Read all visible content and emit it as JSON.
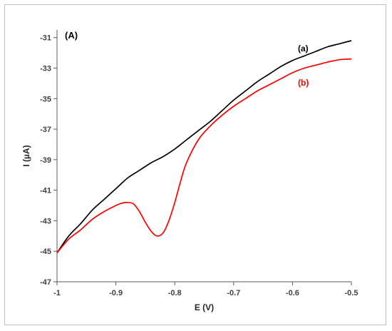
{
  "chart_data": {
    "type": "line",
    "panel_label": "(A)",
    "xlabel": "E (V)",
    "ylabel": "I (µA)",
    "xlim": [
      -1,
      -0.5
    ],
    "ylim": [
      -47,
      -30.5
    ],
    "x_ticks": [
      -1,
      -0.9,
      -0.8,
      -0.7,
      -0.6,
      -0.5
    ],
    "x_tick_labels": [
      "-1",
      "-0.9",
      "-0.8",
      "-0.7",
      "-0.6",
      "-0.5"
    ],
    "y_ticks": [
      -47,
      -45,
      -43,
      -41,
      -39,
      -37,
      -35,
      -33,
      -31
    ],
    "y_tick_labels": [
      "-47",
      "-45",
      "-43",
      "-41",
      "-39",
      "-37",
      "-35",
      "-33",
      "-31"
    ],
    "grid": false,
    "series": [
      {
        "name": "(a)",
        "color": "#000000",
        "x": [
          -1.0,
          -0.98,
          -0.96,
          -0.94,
          -0.92,
          -0.9,
          -0.88,
          -0.86,
          -0.84,
          -0.82,
          -0.8,
          -0.78,
          -0.76,
          -0.74,
          -0.72,
          -0.7,
          -0.68,
          -0.66,
          -0.64,
          -0.62,
          -0.6,
          -0.58,
          -0.56,
          -0.54,
          -0.52,
          -0.5
        ],
        "y": [
          -45.1,
          -44.0,
          -43.2,
          -42.3,
          -41.6,
          -40.9,
          -40.2,
          -39.7,
          -39.2,
          -38.8,
          -38.3,
          -37.7,
          -37.1,
          -36.5,
          -35.8,
          -35.1,
          -34.5,
          -33.9,
          -33.4,
          -32.9,
          -32.5,
          -32.2,
          -31.9,
          -31.6,
          -31.4,
          -31.2
        ]
      },
      {
        "name": "(b)",
        "color": "#ff0000",
        "x": [
          -1.0,
          -0.98,
          -0.96,
          -0.94,
          -0.92,
          -0.9,
          -0.89,
          -0.88,
          -0.87,
          -0.86,
          -0.85,
          -0.84,
          -0.83,
          -0.82,
          -0.81,
          -0.8,
          -0.79,
          -0.78,
          -0.76,
          -0.74,
          -0.72,
          -0.7,
          -0.68,
          -0.66,
          -0.64,
          -0.62,
          -0.6,
          -0.58,
          -0.56,
          -0.54,
          -0.52,
          -0.5
        ],
        "y": [
          -45.1,
          -44.2,
          -43.6,
          -42.9,
          -42.4,
          -42.0,
          -41.85,
          -41.8,
          -41.9,
          -42.4,
          -43.1,
          -43.7,
          -44.0,
          -43.8,
          -43.0,
          -41.8,
          -40.4,
          -39.2,
          -37.7,
          -36.8,
          -36.1,
          -35.5,
          -35.0,
          -34.5,
          -34.1,
          -33.7,
          -33.3,
          -33.0,
          -32.8,
          -32.6,
          -32.45,
          -32.4
        ]
      }
    ]
  }
}
